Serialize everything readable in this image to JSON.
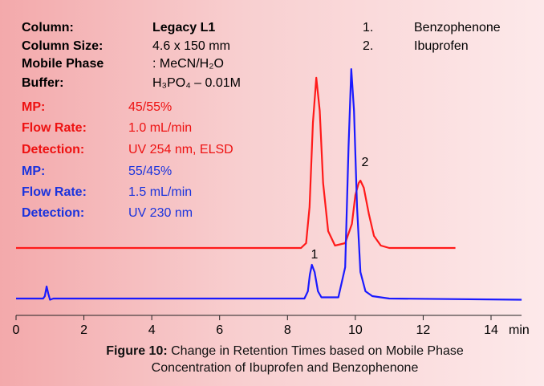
{
  "chart_data": {
    "type": "line",
    "conditions": [
      {
        "label": "Column:",
        "value": "Legacy L1",
        "color": "#000000",
        "value_bold": true
      },
      {
        "label": "Column Size:",
        "value": "4.6 x 150 mm",
        "color": "#000000"
      },
      {
        "label": "Mobile Phase",
        "value": ": MeCN/H₂O",
        "color": "#000000"
      },
      {
        "label": "Buffer:",
        "value": "H₃PO₄ – 0.01M",
        "color": "#000000"
      },
      {
        "label": "MP:",
        "value": "45/55%",
        "color": "#ee1111"
      },
      {
        "label": "Flow Rate:",
        "value": "1.0 mL/min",
        "color": "#ee1111"
      },
      {
        "label": "Detection:",
        "value": "UV 254 nm, ELSD",
        "color": "#ee1111"
      },
      {
        "label": "MP:",
        "value": "55/45%",
        "color": "#1a33dd"
      },
      {
        "label": "Flow Rate:",
        "value": "1.5 mL/min",
        "color": "#1a33dd"
      },
      {
        "label": "Detection:",
        "value": "UV 230 nm",
        "color": "#1a33dd"
      }
    ],
    "peaks": [
      {
        "number": "1.",
        "name": "Benzophenone"
      },
      {
        "number": "2.",
        "name": "Ibuprofen"
      }
    ],
    "annotations": [
      "1",
      "2"
    ],
    "xlabel": "min",
    "xlim": [
      0,
      14
    ],
    "xticks": [
      0,
      2,
      4,
      6,
      8,
      10,
      12,
      14
    ],
    "ylim": [
      0,
      105
    ],
    "series": [
      {
        "color": "#ff1a1a",
        "x": [
          0,
          8.4,
          8.55,
          8.65,
          8.75,
          8.85,
          8.95,
          9.05,
          9.2,
          9.4,
          9.7,
          9.9,
          10.0,
          10.1,
          10.15,
          10.25,
          10.4,
          10.55,
          10.75,
          11.0,
          12.95
        ],
        "values": [
          28,
          28,
          30,
          45,
          80,
          98.7,
          85,
          55,
          35,
          29,
          30,
          38,
          50,
          55,
          56,
          53,
          42,
          33,
          29,
          28,
          28
        ]
      },
      {
        "color": "#1a1aff",
        "x": [
          0,
          0.8,
          0.85,
          0.9,
          0.95,
          1.0,
          1.1,
          8.5,
          8.6,
          8.66,
          8.72,
          8.8,
          8.9,
          9.0,
          9.5,
          9.7,
          9.8,
          9.88,
          9.96,
          10.05,
          10.15,
          10.3,
          10.5,
          11,
          14.9
        ],
        "values": [
          7,
          7,
          8,
          12,
          9,
          6.5,
          7,
          7,
          10,
          17,
          21,
          18,
          10,
          7.5,
          7.5,
          20,
          70,
          102.3,
          85,
          45,
          18,
          10,
          8,
          7,
          6.5
        ]
      }
    ],
    "caption": {
      "label": "Figure 10:",
      "text": "Change in Retention Times based on Mobile Phase Concentration of Ibuprofen and Benzophenone"
    }
  }
}
